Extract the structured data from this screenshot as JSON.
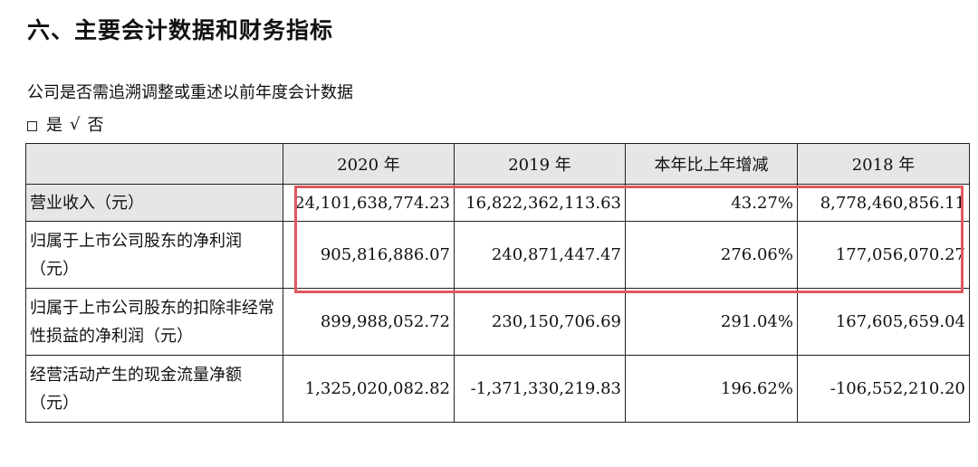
{
  "section_title": "六、主要会计数据和财务指标",
  "question": "公司是否需追溯调整或重述以前年度会计数据",
  "options": {
    "yes_label": "是",
    "checkmark": "√",
    "no_label": "否"
  },
  "table": {
    "headers": [
      "",
      "2020 年",
      "2019 年",
      "本年比上年增减",
      "2018 年"
    ],
    "rows": [
      {
        "label": "营业收入（元）",
        "values": [
          "24,101,638,774.23",
          "16,822,362,113.63",
          "43.27%",
          "8,778,460,856.11"
        ]
      },
      {
        "label": "归属于上市公司股东的净利润（元）",
        "values": [
          "905,816,886.07",
          "240,871,447.47",
          "276.06%",
          "177,056,070.27"
        ]
      },
      {
        "label": "归属于上市公司股东的扣除非经常性损益的净利润（元）",
        "values": [
          "899,988,052.72",
          "230,150,706.69",
          "291.04%",
          "167,605,659.04"
        ]
      },
      {
        "label": "经营活动产生的现金流量净额（元）",
        "values": [
          "1,325,020,082.82",
          "-1,371,330,219.83",
          "196.62%",
          "-106,552,210.20"
        ]
      }
    ]
  },
  "highlight_color": "#e0585e"
}
